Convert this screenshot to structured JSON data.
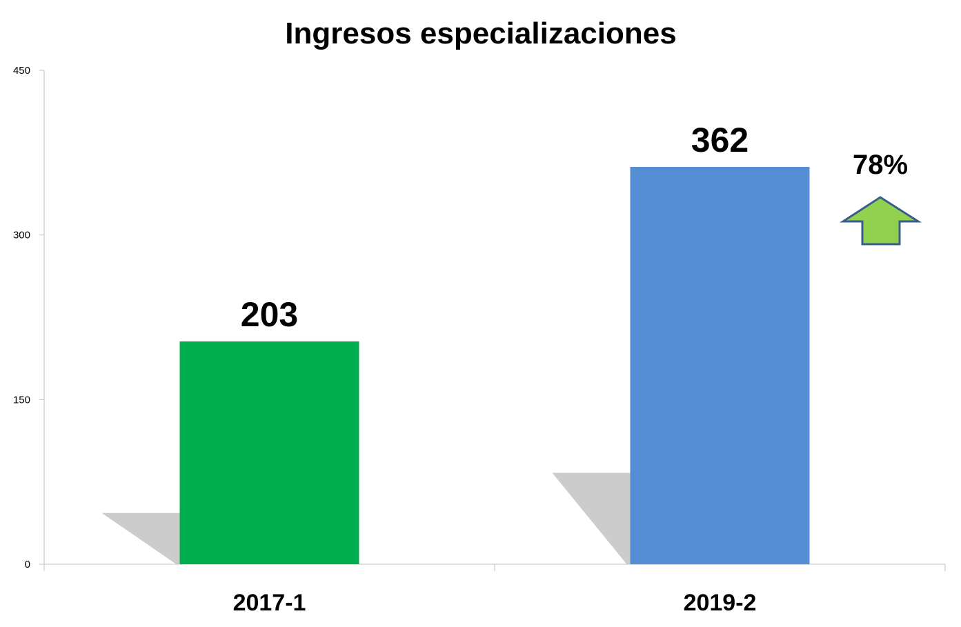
{
  "chart_data": {
    "type": "bar",
    "title": "Ingresos especializaciones",
    "categories": [
      "2017-1",
      "2019-2"
    ],
    "values": [
      203,
      362
    ],
    "bar_colors": [
      "#00AE50",
      "#558ED5"
    ],
    "ylim": [
      0,
      450
    ],
    "yticks": [
      "0",
      "150",
      "300",
      "450"
    ],
    "grid": false,
    "legend": "none",
    "annotation": {
      "text": "78%",
      "icon": "up-arrow-icon",
      "arrow_fill": "#92D050",
      "arrow_stroke": "#385D8A"
    }
  }
}
